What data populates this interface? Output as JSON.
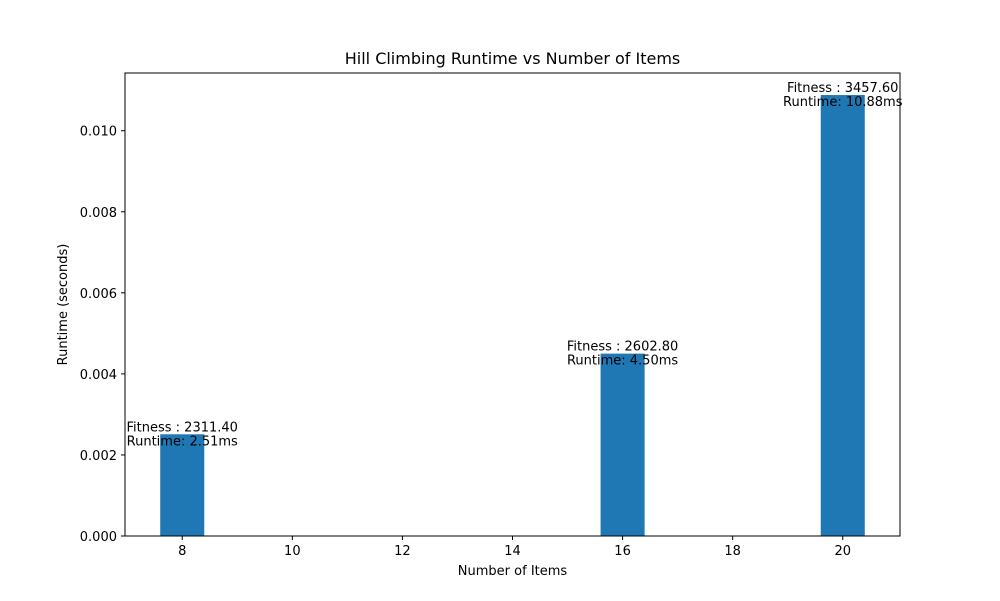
{
  "chart_data": {
    "type": "bar",
    "title": "Hill Climbing Runtime vs Number of Items",
    "xlabel": "Number of Items",
    "ylabel": "Runtime (seconds)",
    "x": [
      8,
      16,
      20
    ],
    "values": [
      0.00251,
      0.0045,
      0.01088
    ],
    "bar_width": 0.8,
    "annotations": [
      {
        "fitness": "Fitness :  2311.40",
        "runtime": "Runtime: 2.51ms"
      },
      {
        "fitness": "Fitness :  2602.80",
        "runtime": "Runtime: 4.50ms"
      },
      {
        "fitness": "Fitness :  3457.60",
        "runtime": "Runtime: 10.88ms"
      }
    ],
    "xlim": [
      6.96,
      21.04
    ],
    "ylim": [
      0,
      0.011424
    ],
    "xticks": [
      8,
      10,
      12,
      14,
      16,
      18,
      20
    ],
    "xtick_labels": [
      "8",
      "10",
      "12",
      "14",
      "16",
      "18",
      "20"
    ],
    "yticks": [
      0,
      0.002,
      0.004,
      0.006,
      0.008,
      0.01
    ],
    "ytick_labels": [
      "0.000",
      "0.002",
      "0.004",
      "0.006",
      "0.008",
      "0.010"
    ],
    "bar_color": "#1f77b4",
    "grid": false,
    "legend": "none"
  }
}
